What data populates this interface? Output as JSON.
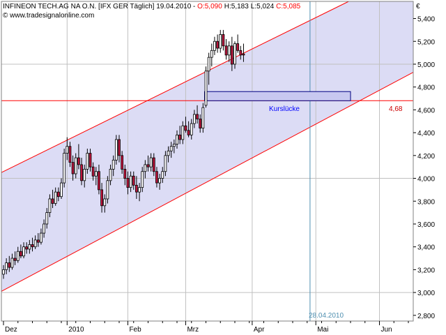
{
  "header": {
    "title": "INFINEON TECH.AG NA O.N. [IFX GER  Täglich] 19.04.2010 - ",
    "o_label": "O:5,090",
    "h_label": "H:5,183",
    "l_label": "L:5,024",
    "c_label": "C:5,085",
    "copyright": "© www.tradesignalonline.com"
  },
  "currency": "€",
  "colors": {
    "up": "#ffffff",
    "down": "#c0143c",
    "channel_fill": "#dcdcf5",
    "channel_line": "#ff0000",
    "grid": "#c0c0c0",
    "gap_box": "#c8c8f0",
    "gap_text": "#0000ff",
    "date_line": "#4f8fb0",
    "o_color": "#ff0000",
    "c_color": "#ff0000"
  },
  "chart_data": {
    "type": "candlestick",
    "instrument": "INFINEON TECH.AG NA O.N.",
    "exchange": "IFX GER",
    "interval": "Täglich",
    "ylim": [
      2.75,
      5.55
    ],
    "y_ticks": [
      "2,800",
      "3,000",
      "3,200",
      "3,400",
      "3,600",
      "3,800",
      "4,000",
      "4,200",
      "4,400",
      "4,600",
      "4,800",
      "5,000",
      "5,200",
      "5,400"
    ],
    "y_tick_values": [
      2.8,
      3.0,
      3.2,
      3.4,
      3.6,
      3.8,
      4.0,
      4.2,
      4.4,
      4.6,
      4.8,
      5.0,
      5.2,
      5.4
    ],
    "x_ticks": [
      "Dez",
      "2010",
      "Feb",
      "Mrz",
      "Apr",
      "Mai",
      "Jun"
    ],
    "x_tick_index": [
      0,
      22,
      43,
      63,
      86,
      108,
      130
    ],
    "x_total": 141,
    "vgrid_index": [
      22,
      43,
      63,
      86,
      108,
      130
    ],
    "hgrid_values": [
      5.0,
      4.0,
      3.0
    ],
    "candles": [
      [
        3.16,
        3.24,
        3.12,
        3.2
      ],
      [
        3.2,
        3.3,
        3.16,
        3.26
      ],
      [
        3.26,
        3.32,
        3.18,
        3.22
      ],
      [
        3.22,
        3.34,
        3.2,
        3.3
      ],
      [
        3.3,
        3.36,
        3.24,
        3.28
      ],
      [
        3.28,
        3.4,
        3.26,
        3.36
      ],
      [
        3.36,
        3.42,
        3.3,
        3.32
      ],
      [
        3.32,
        3.44,
        3.3,
        3.4
      ],
      [
        3.4,
        3.44,
        3.34,
        3.38
      ],
      [
        3.38,
        3.46,
        3.34,
        3.42
      ],
      [
        3.42,
        3.48,
        3.36,
        3.4
      ],
      [
        3.4,
        3.5,
        3.38,
        3.46
      ],
      [
        3.46,
        3.52,
        3.4,
        3.44
      ],
      [
        3.44,
        3.56,
        3.42,
        3.52
      ],
      [
        3.52,
        3.64,
        3.48,
        3.6
      ],
      [
        3.6,
        3.74,
        3.56,
        3.7
      ],
      [
        3.7,
        3.86,
        3.66,
        3.82
      ],
      [
        3.82,
        3.9,
        3.74,
        3.78
      ],
      [
        3.78,
        3.92,
        3.76,
        3.88
      ],
      [
        3.88,
        3.92,
        3.8,
        3.84
      ],
      [
        3.84,
        4.0,
        3.82,
        3.96
      ],
      [
        3.96,
        4.26,
        3.92,
        4.22
      ],
      [
        4.22,
        4.36,
        4.16,
        4.28
      ],
      [
        4.28,
        4.32,
        4.1,
        4.14
      ],
      [
        4.14,
        4.2,
        3.98,
        4.04
      ],
      [
        4.04,
        4.22,
        4.0,
        4.18
      ],
      [
        4.18,
        4.3,
        4.08,
        4.12
      ],
      [
        4.12,
        4.18,
        3.94,
        3.98
      ],
      [
        3.98,
        4.12,
        3.92,
        4.08
      ],
      [
        4.08,
        4.26,
        4.04,
        4.22
      ],
      [
        4.22,
        4.26,
        4.06,
        4.1
      ],
      [
        4.1,
        4.14,
        3.98,
        4.02
      ],
      [
        4.02,
        4.1,
        3.94,
        4.06
      ],
      [
        4.06,
        4.12,
        3.86,
        3.9
      ],
      [
        3.9,
        3.96,
        3.7,
        3.76
      ],
      [
        3.76,
        3.86,
        3.7,
        3.82
      ],
      [
        3.82,
        4.02,
        3.78,
        3.98
      ],
      [
        3.98,
        4.12,
        3.94,
        4.08
      ],
      [
        4.08,
        4.2,
        4.02,
        4.16
      ],
      [
        4.16,
        4.38,
        4.12,
        4.34
      ],
      [
        4.34,
        4.38,
        4.14,
        4.2
      ],
      [
        4.2,
        4.24,
        4.04,
        4.08
      ],
      [
        4.08,
        4.12,
        3.94,
        4.0
      ],
      [
        4.0,
        4.06,
        3.86,
        3.92
      ],
      [
        3.92,
        4.06,
        3.88,
        4.02
      ],
      [
        4.02,
        4.06,
        3.9,
        3.94
      ],
      [
        3.94,
        4.02,
        3.82,
        3.88
      ],
      [
        3.88,
        3.96,
        3.8,
        3.92
      ],
      [
        3.92,
        4.1,
        3.88,
        4.06
      ],
      [
        4.06,
        4.16,
        4.0,
        4.12
      ],
      [
        4.12,
        4.2,
        4.06,
        4.1
      ],
      [
        4.1,
        4.22,
        4.06,
        4.18
      ],
      [
        4.18,
        4.22,
        4.02,
        4.06
      ],
      [
        4.06,
        4.1,
        3.92,
        3.96
      ],
      [
        3.96,
        4.04,
        3.9,
        4.0
      ],
      [
        4.0,
        4.1,
        3.96,
        4.06
      ],
      [
        4.06,
        4.24,
        4.02,
        4.2
      ],
      [
        4.2,
        4.28,
        4.14,
        4.24
      ],
      [
        4.24,
        4.32,
        4.18,
        4.28
      ],
      [
        4.28,
        4.34,
        4.22,
        4.3
      ],
      [
        4.3,
        4.42,
        4.26,
        4.38
      ],
      [
        4.38,
        4.46,
        4.3,
        4.34
      ],
      [
        4.34,
        4.5,
        4.3,
        4.46
      ],
      [
        4.46,
        4.54,
        4.4,
        4.42
      ],
      [
        4.42,
        4.5,
        4.36,
        4.38
      ],
      [
        4.38,
        4.52,
        4.34,
        4.48
      ],
      [
        4.48,
        4.6,
        4.44,
        4.56
      ],
      [
        4.56,
        4.64,
        4.48,
        4.52
      ],
      [
        4.52,
        4.56,
        4.4,
        4.44
      ],
      [
        4.44,
        4.66,
        4.4,
        4.62
      ],
      [
        4.64,
        4.98,
        4.62,
        4.94
      ],
      [
        4.94,
        5.1,
        4.82,
        5.06
      ],
      [
        5.06,
        5.18,
        4.98,
        5.12
      ],
      [
        5.12,
        5.24,
        5.08,
        5.2
      ],
      [
        5.2,
        5.26,
        5.1,
        5.14
      ],
      [
        5.14,
        5.3,
        5.1,
        5.26
      ],
      [
        5.26,
        5.3,
        5.12,
        5.16
      ],
      [
        5.16,
        5.22,
        5.04,
        5.08
      ],
      [
        5.08,
        5.2,
        5.02,
        5.16
      ],
      [
        5.16,
        5.24,
        4.94,
        5.0
      ],
      [
        5.0,
        5.2,
        4.96,
        5.18
      ],
      [
        5.18,
        5.26,
        5.1,
        5.12
      ],
      [
        5.12,
        5.16,
        5.04,
        5.08
      ],
      [
        5.09,
        5.18,
        5.02,
        5.08
      ]
    ],
    "channel": {
      "upper": [
        [
          0,
          4.06
        ],
        [
          141,
          5.82
        ]
      ],
      "lower": [
        [
          0,
          3.02
        ],
        [
          141,
          4.92
        ]
      ]
    },
    "hline": {
      "value": 4.68,
      "label": "4,68"
    },
    "gap": {
      "label": "Kurslücke",
      "from_index": 70,
      "to_index": 120,
      "top": 4.76,
      "bottom": 4.68
    },
    "date_marker": {
      "index": 106,
      "label": "28.04.2010"
    }
  }
}
